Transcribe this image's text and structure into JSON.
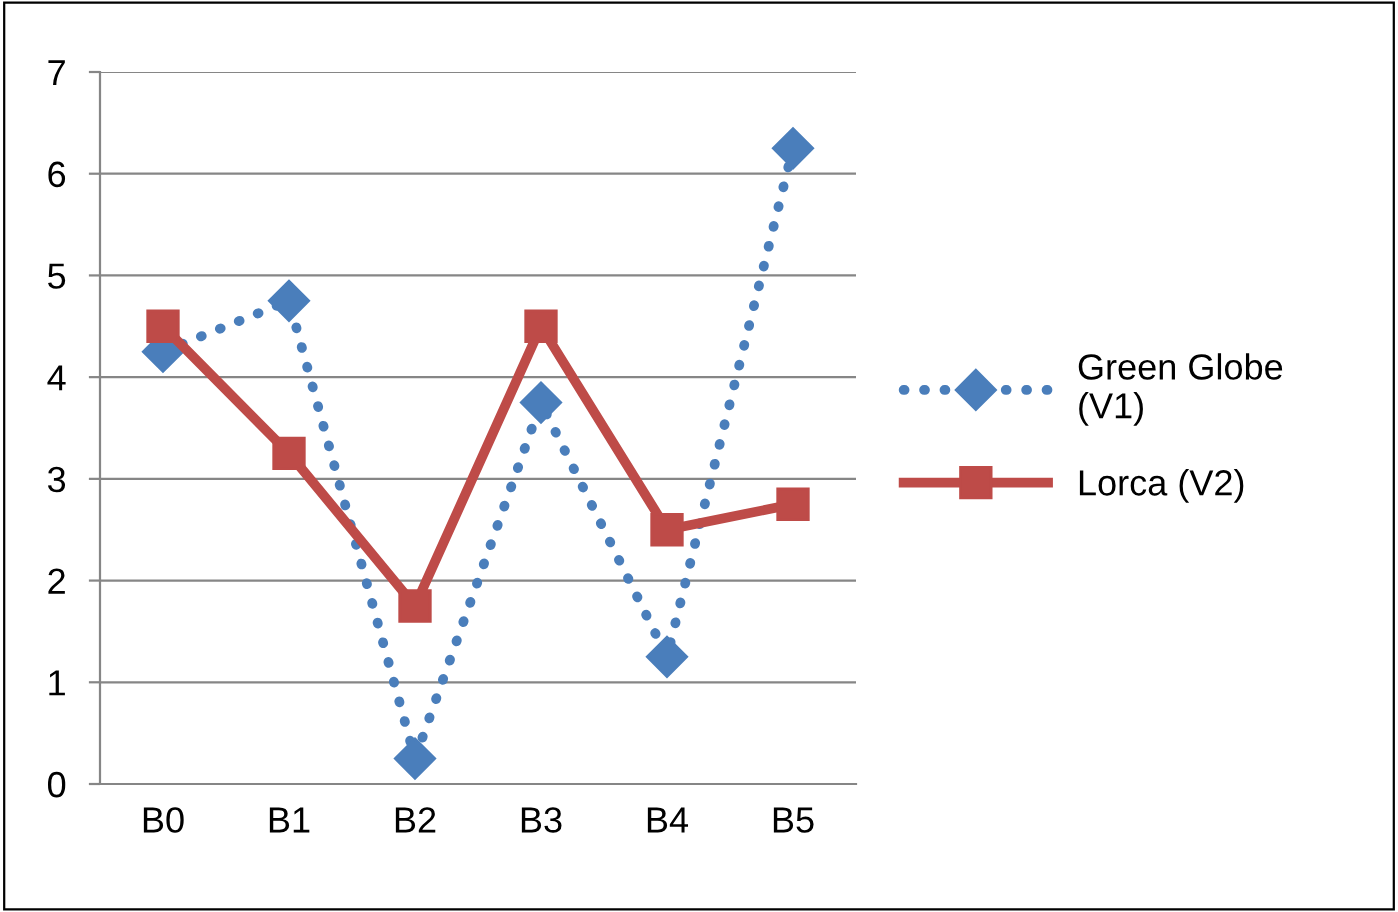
{
  "chart_data": {
    "type": "line",
    "categories": [
      "B0",
      "B1",
      "B2",
      "B3",
      "B4",
      "B5"
    ],
    "series": [
      {
        "name": "Green Globe (V1)",
        "color": "#4a7ebb",
        "marker": "diamond",
        "line_style": "dotted",
        "values": [
          4.25,
          4.75,
          0.25,
          3.75,
          1.25,
          6.25
        ]
      },
      {
        "name": "Lorca (V2)",
        "color": "#be4b48",
        "marker": "square",
        "line_style": "solid",
        "values": [
          4.5,
          3.25,
          1.75,
          4.5,
          2.5,
          2.75
        ]
      }
    ],
    "ylim": [
      0,
      7
    ],
    "yticks": [
      0,
      1,
      2,
      3,
      4,
      5,
      6,
      7
    ],
    "grid": "y",
    "legend": "right"
  }
}
